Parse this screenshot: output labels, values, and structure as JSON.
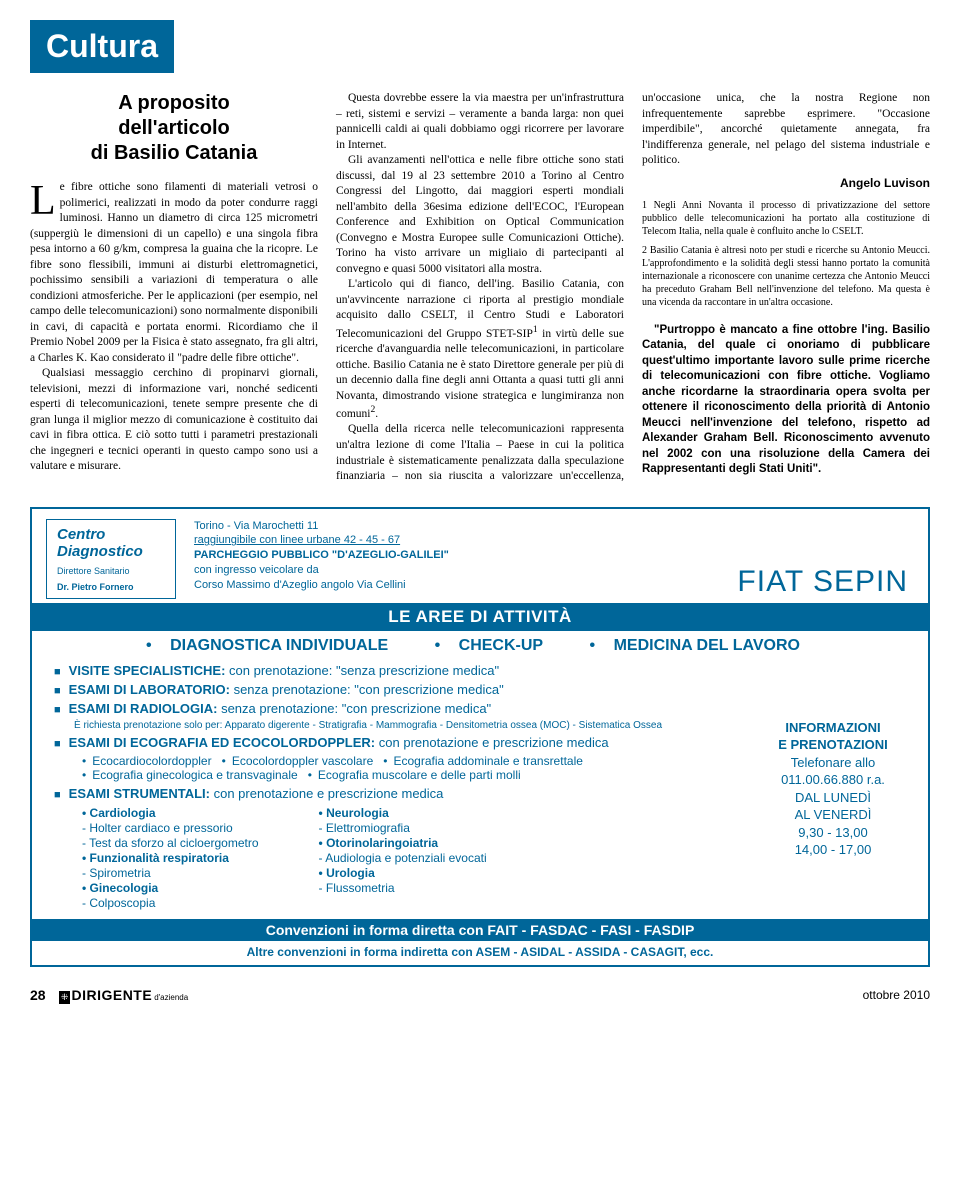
{
  "header": "Cultura",
  "article": {
    "title_l1": "A proposito",
    "title_l2": "dell'articolo",
    "title_l3": "di Basilio Catania",
    "dropcap": "L",
    "p1": "e fibre ottiche sono filamenti di materiali vetrosi o polimerici, realizzati in modo da poter condurre raggi luminosi. Hanno un diametro di circa 125 micrometri (suppergiù le dimensioni di un capello) e una singola fibra pesa intorno a 60 g/km, compresa la guaina che la ricopre. Le fibre sono flessibili, immuni ai disturbi elettromagnetici, pochissimo sensibili a variazioni di temperatura o alle condizioni atmosferiche. Per le applicazioni (per esempio, nel campo delle telecomunicazioni) sono normalmente disponibili in cavi, di capacità e portata enormi. Ricordiamo che il Premio Nobel 2009 per la Fisica è stato assegnato, fra gli altri, a Charles K. Kao considerato il \"padre delle fibre ottiche\".",
    "p2": "Qualsiasi messaggio cerchino di propinarvi giornali, televisioni, mezzi di informazione vari, nonché sedicenti esperti di telecomunicazioni, tenete sempre presente che di gran lunga il miglior mezzo di comunicazione è costituito dai cavi in fibra ottica. E ciò sotto tutti i parametri prestazionali che ingegneri e tecnici operanti in questo campo sono usi a valutare e misurare.",
    "p3": "Questa dovrebbe essere la via maestra per un'infrastruttura – reti, sistemi e servizi – veramente a banda larga: non quei pannicelli caldi ai quali dobbiamo oggi ricorrere per lavorare in Internet.",
    "p4": "Gli avanzamenti nell'ottica e nelle fibre ottiche sono stati discussi, dal 19 al 23 settembre 2010 a Torino al Centro Congressi del Lingotto, dai maggiori esperti mondiali nell'ambito della 36esima edizione dell'ECOC, l'European Conference and Exhibition on Optical Communication (Convegno e Mostra Europee sulle Comunicazioni Ottiche). Torino ha visto arrivare un migliaio di partecipanti al convegno e quasi 5000 visitatori alla mostra.",
    "p5a": "L'articolo qui di fianco, dell'ing. Basilio Catania, con un'avvincente narrazione ci riporta al prestigio mondiale acquisito dallo CSELT, il Centro Studi e Laboratori Telecomunicazioni del Gruppo STET-SIP",
    "p5b": " in virtù delle sue ricerche d'avanguardia nelle telecomunicazioni, in particolare ottiche. Basilio Catania ne è stato Direttore generale per più di un decennio dalla fine degli anni Ottanta a quasi tutti gli anni Novanta, dimostrando visione strategica e lungimiranza non comuni",
    "p5c": ".",
    "p6": "Quella della ricerca nelle telecomunicazioni rappresenta un'altra lezione di come l'Italia – Paese in cui la politica industriale è sistematicamente penalizzata dalla speculazione finanziaria – non sia riuscita a valorizzare un'eccellenza, un'occasione unica, che la nostra Regione non infrequentemente saprebbe esprimere. \"Occasione imperdibile\", ancorché quietamente annegata, fra l'indifferenza generale, nel pelago del sistema industriale e politico.",
    "byline": "Angelo Luvison",
    "fn1": "1 Negli Anni Novanta il processo di privatizzazione del settore pubblico delle telecomunicazioni ha portato alla costituzione di Telecom Italia, nella quale è confluito anche lo CSELT.",
    "fn2": "2 Basilio Catania è altresì noto per studi e ricerche su Antonio Meucci. L'approfondimento e la solidità degli stessi hanno portato la comunità internazionale a riconoscere con unanime certezza che Antonio Meucci ha preceduto Graham Bell nell'invenzione del telefono. Ma questa è una vicenda da raccontare in un'altra occasione.",
    "closing1": "\"Purtroppo è mancato a fine ottobre l'ing. Basilio Catania, del quale ci onoriamo di pubblicare quest'ultimo importante lavoro sulle prime ricerche di telecomunicazioni con fibre ottiche. Vogliamo anche ricordarne la straordinaria opera svolta per ottenere il riconoscimento della priorità di Antonio Meucci nell'invenzione del telefono, rispetto ad Alexander Graham Bell. Riconoscimento avvenuto nel 2002 con una risoluzione della Camera dei Rappresentanti degli Stati Uniti\"."
  },
  "ad": {
    "logo1": "Centro",
    "logo2": "Diagnostico",
    "logo_sub1": "Direttore Sanitario",
    "logo_sub2": "Dr. Pietro Fornero",
    "addr1": "Torino - Via Marochetti 11",
    "addr2": "raggiungibile con linee urbane 42 - 45 - 67",
    "addr3": "PARCHEGGIO PUBBLICO \"D'AZEGLIO-GALILEI\"",
    "addr4": "con ingresso veicolare da",
    "addr5": "Corso Massimo d'Azeglio angolo Via Cellini",
    "brand": "FIAT SEPIN",
    "band1": "LE AREE DI ATTIVITÀ",
    "strip": {
      "a": "DIAGNOSTICA INDIVIDUALE",
      "b": "CHECK-UP",
      "c": "MEDICINA DEL LAVORO"
    },
    "r1a": "VISITE SPECIALISTICHE:",
    "r1b": "con prenotazione: \"senza prescrizione medica\"",
    "r2a": "ESAMI DI LABORATORIO:",
    "r2b": "senza prenotazione: \"con prescrizione medica\"",
    "r3a": "ESAMI DI RADIOLOGIA:",
    "r3b": "senza prenotazione: \"con prescrizione medica\"",
    "r3note": "È richiesta prenotazione solo per: Apparato digerente - Stratigrafia - Mammografia - Densitometria ossea (MOC) - Sistematica Ossea",
    "r4a": "ESAMI DI ECOGRAFIA ED ECOCOLORDOPPLER:",
    "r4b": "con prenotazione e prescrizione medica",
    "r4s1": "Ecocardiocolordoppler",
    "r4s2": "Ecocolordoppler vascolare",
    "r4s3": "Ecografia addominale e transrettale",
    "r4s4": "Ecografia ginecologica e transvaginale",
    "r4s5": "Ecografia muscolare e delle parti molli",
    "r5a": "ESAMI STRUMENTALI:",
    "r5b": "con prenotazione e prescrizione medica",
    "colL": {
      "h1": "Cardiologia",
      "l1": "- Holter cardiaco e pressorio",
      "l2": "- Test da sforzo al cicloergometro",
      "h2": "Funzionalità respiratoria",
      "l3": "- Spirometria",
      "h3": "Ginecologia",
      "l4": "- Colposcopia"
    },
    "colR": {
      "h1": "Neurologia",
      "l1": "- Elettromiografia",
      "h2": "Otorinolaringoiatria",
      "l2": "- Audiologia e potenziali evocati",
      "h3": "Urologia",
      "l3": "- Flussometria"
    },
    "info": {
      "t1": "INFORMAZIONI",
      "t2": "E PRENOTAZIONI",
      "t3": "Telefonare allo",
      "t4": "011.00.66.880 r.a.",
      "t5": "DAL LUNEDÌ",
      "t6": "AL VENERDÌ",
      "t7": "9,30 - 13,00",
      "t8": "14,00 - 17,00"
    },
    "band2": "Convenzioni in forma diretta con FAIT - FASDAC - FASI - FASDIP",
    "foot2": "Altre convenzioni in forma indiretta con ASEM - ASIDAL - ASSIDA - CASAGIT, ecc."
  },
  "footer": {
    "page": "28",
    "mag": "DIRIGENTE",
    "magsub": "d'azienda",
    "date": "ottobre 2010"
  }
}
